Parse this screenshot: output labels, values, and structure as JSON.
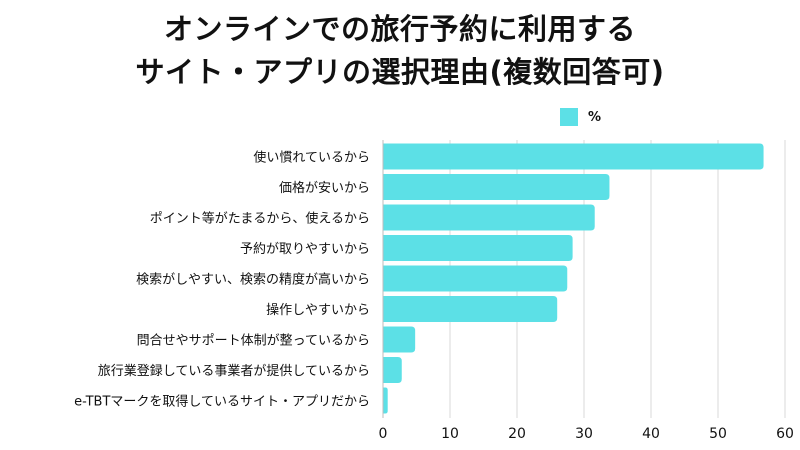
{
  "chart_data": {
    "type": "bar",
    "orientation": "horizontal",
    "title_lines": [
      "オンラインでの旅行予約に利用する",
      "サイト・アプリの選択理由(複数回答可)"
    ],
    "legend_position": "top-right",
    "series": [
      {
        "name": "%",
        "color": "#5ce0e6",
        "values": [
          56.8,
          33.8,
          31.6,
          28.3,
          27.5,
          26.0,
          4.8,
          2.8,
          0.7
        ]
      }
    ],
    "categories": [
      "使い慣れているから",
      "価格が安いから",
      "ポイント等がたまるから、使えるから",
      "予約が取りやすいから",
      "検索がしやすい、検索の精度が高いから",
      "操作しやすいから",
      "問合せやサポート体制が整っているから",
      "旅行業登録している事業者が提供しているから",
      "e-TBTマークを取得しているサイト・アプリだから"
    ],
    "x_ticks": [
      "0",
      "10",
      "20",
      "30",
      "40",
      "50",
      "60"
    ],
    "xlim": [
      0,
      60
    ],
    "grid": true
  }
}
